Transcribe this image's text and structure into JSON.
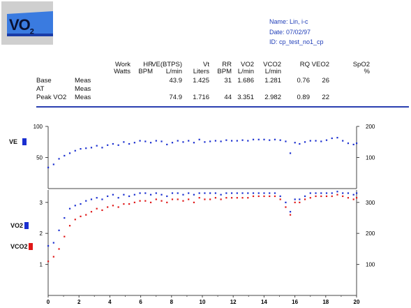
{
  "logo": {
    "text": "VO",
    "sub": "2"
  },
  "patient": {
    "name": "Name: Lin, i-c",
    "date": "Date: 07/02/97",
    "id": "ID: cp_test_no1_cp"
  },
  "table": {
    "columns": [
      {
        "line1": "Work",
        "line2": "Watts"
      },
      {
        "line1": "HR",
        "line2": "BPM"
      },
      {
        "line1": "VE(BTPS)",
        "line2": "L/min"
      },
      {
        "line1": "Vt",
        "line2": "Liters"
      },
      {
        "line1": "RR",
        "line2": "BPM"
      },
      {
        "line1": "VO2",
        "line2": "L/min"
      },
      {
        "line1": "VCO2",
        "line2": "L/min"
      },
      {
        "line1": "RQ",
        "line2": ""
      },
      {
        "line1": "VEO2",
        "line2": ""
      },
      {
        "line1": "SpO2",
        "line2": "%"
      }
    ],
    "rows": [
      {
        "label": "Base",
        "type": "Meas",
        "values": [
          "",
          "",
          "43.9",
          "1.425",
          "31",
          "1.686",
          "1.281",
          "0.76",
          "26",
          ""
        ]
      },
      {
        "label": "AT",
        "type": "Meas",
        "values": [
          "",
          "",
          "",
          "",
          "",
          "",
          "",
          "",
          "",
          ""
        ]
      },
      {
        "label": "Peak VO2",
        "type": "Meas",
        "values": [
          "",
          "",
          "74.9",
          "1.716",
          "44",
          "3.351",
          "2.982",
          "0.89",
          "22",
          ""
        ]
      }
    ]
  },
  "chart_data": [
    {
      "type": "scatter",
      "xlim": [
        0,
        20
      ],
      "left_axis_ticks": [
        "100",
        "50"
      ],
      "right_axis_ticks": [
        "200",
        "100"
      ],
      "ylim_left": [
        0,
        100
      ],
      "legend": [
        {
          "name": "VE",
          "color": "#1a2fd0"
        }
      ],
      "series": [
        {
          "name": "VE",
          "color": "#1a2fd0",
          "x": [
            0.0,
            0.35,
            0.7,
            1.05,
            1.4,
            1.75,
            2.1,
            2.45,
            2.8,
            3.15,
            3.5,
            3.85,
            4.2,
            4.55,
            4.9,
            5.25,
            5.6,
            5.95,
            6.3,
            6.65,
            7.0,
            7.35,
            7.7,
            8.05,
            8.4,
            8.75,
            9.1,
            9.45,
            9.8,
            10.15,
            10.5,
            10.85,
            11.2,
            11.55,
            11.9,
            12.25,
            12.6,
            12.95,
            13.3,
            13.65,
            14.0,
            14.35,
            14.7,
            15.05,
            15.4,
            15.7,
            16.0,
            16.3,
            16.65,
            17.0,
            17.35,
            17.7,
            18.05,
            18.4,
            18.75,
            19.1,
            19.45,
            19.8,
            20.0
          ],
          "y": [
            34,
            39,
            48,
            53,
            57,
            61,
            64,
            65,
            66,
            69,
            66,
            70,
            72,
            70,
            75,
            72,
            74,
            77,
            76,
            74,
            77,
            76,
            71,
            74,
            77,
            75,
            77,
            74,
            79,
            75,
            76,
            77,
            76,
            78,
            77,
            77,
            78,
            77,
            79,
            79,
            79,
            78,
            79,
            78,
            76,
            57,
            74,
            72,
            75,
            77,
            77,
            76,
            78,
            81,
            82,
            77,
            73,
            71,
            73
          ]
        }
      ]
    },
    {
      "type": "scatter",
      "xlim": [
        0,
        20
      ],
      "left_axis_ticks": [
        "3",
        "2",
        "1"
      ],
      "right_axis_ticks": [
        "300",
        "200",
        "100"
      ],
      "ylim_left": [
        0,
        3.4
      ],
      "x_ticks": [
        "0",
        "2",
        "4",
        "6",
        "8",
        "10",
        "12",
        "14",
        "16",
        "18",
        "20"
      ],
      "legend": [
        {
          "name": "VO2",
          "color": "#1a2fd0"
        },
        {
          "name": "VCO2",
          "color": "#e01818"
        }
      ],
      "series": [
        {
          "name": "VO2",
          "color": "#1a2fd0",
          "x": [
            0.0,
            0.35,
            0.7,
            1.05,
            1.4,
            1.75,
            2.1,
            2.45,
            2.8,
            3.15,
            3.5,
            3.85,
            4.2,
            4.55,
            4.9,
            5.25,
            5.6,
            5.95,
            6.3,
            6.65,
            7.0,
            7.35,
            7.7,
            8.05,
            8.4,
            8.75,
            9.1,
            9.45,
            9.8,
            10.15,
            10.5,
            10.85,
            11.2,
            11.55,
            11.9,
            12.25,
            12.6,
            12.95,
            13.3,
            13.65,
            14.0,
            14.35,
            14.7,
            15.05,
            15.4,
            15.7,
            16.0,
            16.3,
            16.65,
            17.0,
            17.35,
            17.7,
            18.05,
            18.4,
            18.75,
            19.1,
            19.45,
            19.8,
            20.0
          ],
          "y": [
            1.6,
            1.7,
            2.1,
            2.5,
            2.8,
            2.9,
            2.95,
            3.05,
            3.1,
            3.15,
            3.1,
            3.2,
            3.25,
            3.15,
            3.25,
            3.2,
            3.25,
            3.3,
            3.3,
            3.25,
            3.3,
            3.25,
            3.2,
            3.3,
            3.3,
            3.25,
            3.3,
            3.25,
            3.3,
            3.3,
            3.3,
            3.3,
            3.25,
            3.3,
            3.3,
            3.3,
            3.3,
            3.3,
            3.3,
            3.3,
            3.3,
            3.3,
            3.3,
            3.2,
            3.0,
            2.7,
            3.1,
            3.1,
            3.2,
            3.3,
            3.3,
            3.3,
            3.3,
            3.3,
            3.35,
            3.3,
            3.3,
            3.25,
            3.3
          ]
        },
        {
          "name": "VCO2",
          "color": "#e01818",
          "x": [
            0.0,
            0.35,
            0.7,
            1.05,
            1.4,
            1.75,
            2.1,
            2.45,
            2.8,
            3.15,
            3.5,
            3.85,
            4.2,
            4.55,
            4.9,
            5.25,
            5.6,
            5.95,
            6.3,
            6.65,
            7.0,
            7.35,
            7.7,
            8.05,
            8.4,
            8.75,
            9.1,
            9.45,
            9.8,
            10.15,
            10.5,
            10.85,
            11.2,
            11.55,
            11.9,
            12.25,
            12.6,
            12.95,
            13.3,
            13.65,
            14.0,
            14.35,
            14.7,
            15.05,
            15.4,
            15.7,
            16.0,
            16.3,
            16.65,
            17.0,
            17.35,
            17.7,
            18.05,
            18.4,
            18.75,
            19.1,
            19.45,
            19.8,
            20.0
          ],
          "y": [
            1.1,
            1.25,
            1.5,
            1.9,
            2.25,
            2.45,
            2.55,
            2.6,
            2.7,
            2.8,
            2.75,
            2.85,
            2.9,
            2.85,
            2.95,
            2.95,
            3.0,
            3.05,
            3.05,
            3.0,
            3.1,
            3.05,
            3.0,
            3.1,
            3.1,
            3.05,
            3.1,
            3.0,
            3.15,
            3.1,
            3.1,
            3.15,
            3.1,
            3.15,
            3.15,
            3.15,
            3.15,
            3.15,
            3.2,
            3.2,
            3.2,
            3.2,
            3.2,
            3.1,
            2.85,
            2.6,
            3.0,
            3.0,
            3.1,
            3.15,
            3.2,
            3.2,
            3.2,
            3.2,
            3.25,
            3.2,
            3.15,
            3.1,
            3.15
          ]
        }
      ]
    }
  ]
}
